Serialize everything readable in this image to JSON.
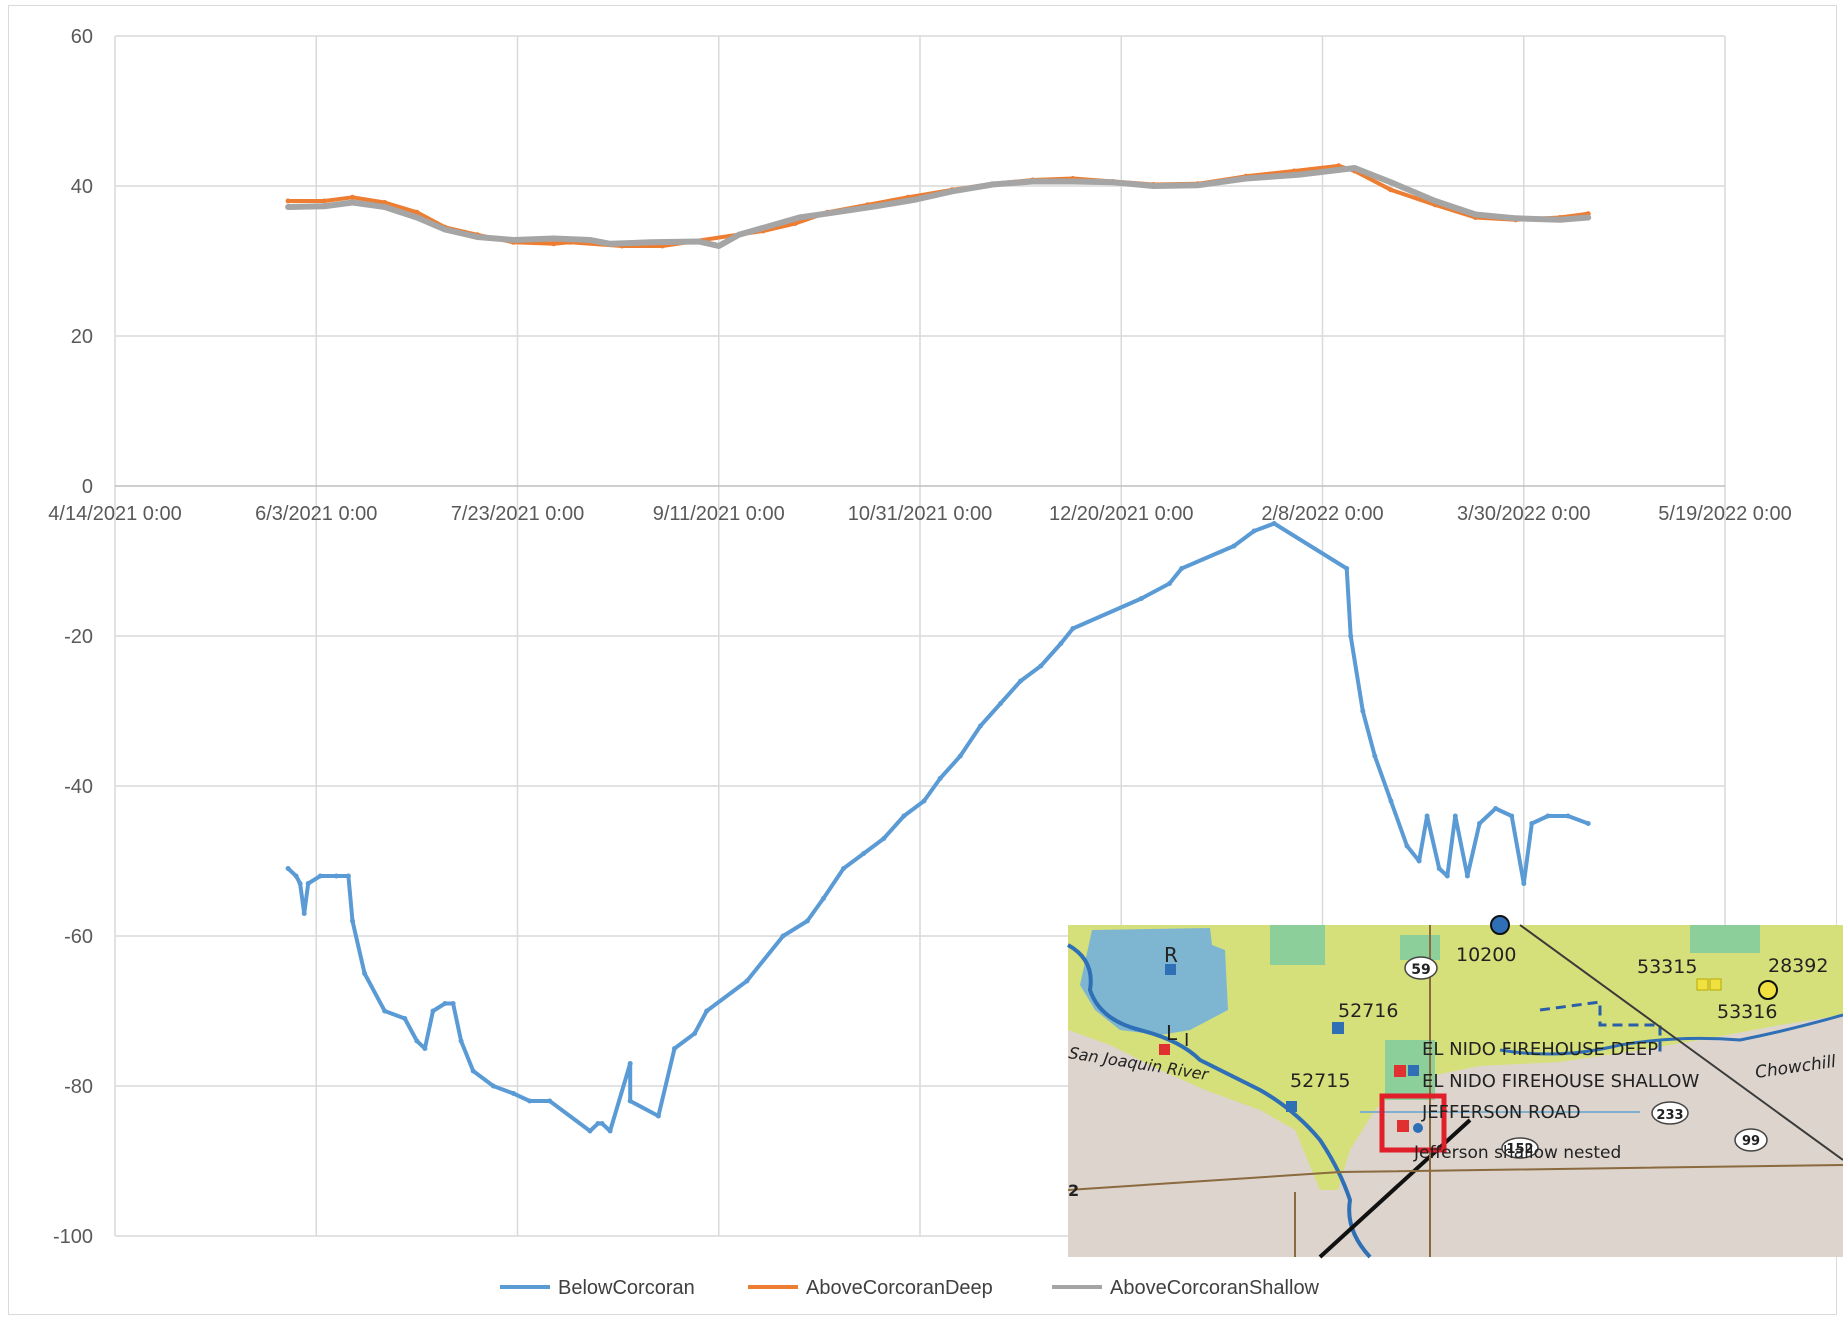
{
  "chart_data": {
    "type": "line",
    "title": "",
    "xlabel": "",
    "ylabel": "",
    "ylim": [
      -100,
      60
    ],
    "yticks": [
      60,
      40,
      20,
      0,
      -20,
      -40,
      -60,
      -80,
      -100
    ],
    "xlim": [
      "2021-04-14",
      "2022-05-19"
    ],
    "x_tick_labels": [
      "4/14/2021 0:00",
      "6/3/2021 0:00",
      "7/23/2021 0:00",
      "9/11/2021 0:00",
      "10/31/2021 0:00",
      "12/20/2021 0:00",
      "2/8/2022 0:00",
      "3/30/2022 0:00",
      "5/19/2022 0:00"
    ],
    "x_tick_dates": [
      "2021-04-14",
      "2021-06-03",
      "2021-07-23",
      "2021-09-11",
      "2021-10-31",
      "2021-12-20",
      "2022-02-08",
      "2022-03-30",
      "2022-05-19"
    ],
    "grid": true,
    "legend": "bottom",
    "series": [
      {
        "name": "BelowCorcoran",
        "color": "#5b9bd5",
        "points": [
          [
            "2021-05-27",
            -51
          ],
          [
            "2021-05-29",
            -52
          ],
          [
            "2021-05-30",
            -53
          ],
          [
            "2021-05-31",
            -57
          ],
          [
            "2021-06-01",
            -53
          ],
          [
            "2021-06-04",
            -52
          ],
          [
            "2021-06-08",
            -52
          ],
          [
            "2021-06-11",
            -52
          ],
          [
            "2021-06-12",
            -58
          ],
          [
            "2021-06-15",
            -65
          ],
          [
            "2021-06-20",
            -70
          ],
          [
            "2021-06-25",
            -71
          ],
          [
            "2021-06-28",
            -74
          ],
          [
            "2021-06-30",
            -75
          ],
          [
            "2021-07-02",
            -70
          ],
          [
            "2021-07-05",
            -69
          ],
          [
            "2021-07-07",
            -69
          ],
          [
            "2021-07-09",
            -74
          ],
          [
            "2021-07-12",
            -78
          ],
          [
            "2021-07-17",
            -80
          ],
          [
            "2021-07-22",
            -81
          ],
          [
            "2021-07-26",
            -82
          ],
          [
            "2021-07-31",
            -82
          ],
          [
            "2021-08-10",
            -86
          ],
          [
            "2021-08-12",
            -85
          ],
          [
            "2021-08-13",
            -85
          ],
          [
            "2021-08-15",
            -86
          ],
          [
            "2021-08-20",
            -77
          ],
          [
            "2021-08-20",
            -82
          ],
          [
            "2021-08-27",
            -84
          ],
          [
            "2021-08-31",
            -75
          ],
          [
            "2021-09-05",
            -73
          ],
          [
            "2021-09-08",
            -70
          ],
          [
            "2021-09-18",
            -66
          ],
          [
            "2021-09-27",
            -60
          ],
          [
            "2021-10-03",
            -58
          ],
          [
            "2021-10-07",
            -55
          ],
          [
            "2021-10-12",
            -51
          ],
          [
            "2021-10-17",
            -49
          ],
          [
            "2021-10-22",
            -47
          ],
          [
            "2021-10-27",
            -44
          ],
          [
            "2021-11-01",
            -42
          ],
          [
            "2021-11-05",
            -39
          ],
          [
            "2021-11-10",
            -36
          ],
          [
            "2021-11-15",
            -32
          ],
          [
            "2021-11-20",
            -29
          ],
          [
            "2021-11-25",
            -26
          ],
          [
            "2021-11-30",
            -24
          ],
          [
            "2021-12-05",
            -21
          ],
          [
            "2021-12-08",
            -19
          ],
          [
            "2021-12-25",
            -15
          ],
          [
            "2022-01-01",
            -13
          ],
          [
            "2022-01-04",
            -11
          ],
          [
            "2022-01-17",
            -8
          ],
          [
            "2022-01-22",
            -6
          ],
          [
            "2022-01-27",
            -5
          ],
          [
            "2022-02-14",
            -11
          ],
          [
            "2022-02-15",
            -20
          ],
          [
            "2022-02-18",
            -30
          ],
          [
            "2022-02-21",
            -36
          ],
          [
            "2022-02-25",
            -42
          ],
          [
            "2022-03-01",
            -48
          ],
          [
            "2022-03-04",
            -50
          ],
          [
            "2022-03-06",
            -44
          ],
          [
            "2022-03-09",
            -51
          ],
          [
            "2022-03-11",
            -52
          ],
          [
            "2022-03-13",
            -44
          ],
          [
            "2022-03-16",
            -52
          ],
          [
            "2022-03-19",
            -45
          ],
          [
            "2022-03-23",
            -43
          ],
          [
            "2022-03-27",
            -44
          ],
          [
            "2022-03-30",
            -53
          ],
          [
            "2022-04-01",
            -45
          ],
          [
            "2022-04-05",
            -44
          ],
          [
            "2022-04-10",
            -44
          ],
          [
            "2022-04-15",
            -45
          ]
        ]
      },
      {
        "name": "AboveCorcoranDeep",
        "color": "#ed7d31",
        "points": [
          [
            "2021-05-27",
            38
          ],
          [
            "2021-06-05",
            38
          ],
          [
            "2021-06-12",
            38.5
          ],
          [
            "2021-06-20",
            37.8
          ],
          [
            "2021-06-28",
            36.5
          ],
          [
            "2021-07-05",
            34.5
          ],
          [
            "2021-07-13",
            33.5
          ],
          [
            "2021-07-22",
            32.5
          ],
          [
            "2021-08-01",
            32.3
          ],
          [
            "2021-08-05",
            32.5
          ],
          [
            "2021-08-18",
            32
          ],
          [
            "2021-08-28",
            32
          ],
          [
            "2021-09-22",
            34
          ],
          [
            "2021-09-30",
            35
          ],
          [
            "2021-10-08",
            36.5
          ],
          [
            "2021-10-18",
            37.5
          ],
          [
            "2021-10-28",
            38.5
          ],
          [
            "2021-11-08",
            39.5
          ],
          [
            "2021-11-18",
            40.3
          ],
          [
            "2021-11-28",
            40.8
          ],
          [
            "2021-12-08",
            41
          ],
          [
            "2021-12-18",
            40.6
          ],
          [
            "2021-12-28",
            40.2
          ],
          [
            "2022-01-08",
            40.3
          ],
          [
            "2022-01-20",
            41.3
          ],
          [
            "2022-02-01",
            42
          ],
          [
            "2022-02-12",
            42.7
          ],
          [
            "2022-02-16",
            42
          ],
          [
            "2022-02-25",
            39.5
          ],
          [
            "2022-03-08",
            37.5
          ],
          [
            "2022-03-18",
            35.8
          ],
          [
            "2022-03-28",
            35.5
          ],
          [
            "2022-04-08",
            35.8
          ],
          [
            "2022-04-15",
            36.3
          ]
        ]
      },
      {
        "name": "AboveCorcoranShallow",
        "color": "#a5a5a5",
        "points": [
          [
            "2021-05-27",
            37.2
          ],
          [
            "2021-06-05",
            37.3
          ],
          [
            "2021-06-12",
            37.8
          ],
          [
            "2021-06-20",
            37.2
          ],
          [
            "2021-06-28",
            35.8
          ],
          [
            "2021-07-05",
            34.2
          ],
          [
            "2021-07-13",
            33.2
          ],
          [
            "2021-07-22",
            32.8
          ],
          [
            "2021-08-01",
            33
          ],
          [
            "2021-08-10",
            32.8
          ],
          [
            "2021-08-15",
            32.3
          ],
          [
            "2021-08-25",
            32.5
          ],
          [
            "2021-09-06",
            32.6
          ],
          [
            "2021-09-11",
            32
          ],
          [
            "2021-09-16",
            33.5
          ],
          [
            "2021-10-01",
            35.8
          ],
          [
            "2021-10-10",
            36.5
          ],
          [
            "2021-10-20",
            37.3
          ],
          [
            "2021-10-30",
            38.2
          ],
          [
            "2021-11-08",
            39.3
          ],
          [
            "2021-11-18",
            40.2
          ],
          [
            "2021-11-28",
            40.6
          ],
          [
            "2021-12-08",
            40.6
          ],
          [
            "2021-12-18",
            40.5
          ],
          [
            "2021-12-28",
            40
          ],
          [
            "2022-01-08",
            40.1
          ],
          [
            "2022-01-20",
            41
          ],
          [
            "2022-02-02",
            41.5
          ],
          [
            "2022-02-16",
            42.4
          ],
          [
            "2022-02-25",
            40.5
          ],
          [
            "2022-03-08",
            38
          ],
          [
            "2022-03-18",
            36.2
          ],
          [
            "2022-03-28",
            35.7
          ],
          [
            "2022-04-08",
            35.5
          ],
          [
            "2022-04-15",
            35.8
          ]
        ]
      }
    ]
  },
  "inset_map": {
    "labels": {
      "r": "R",
      "l": "L",
      "i": "I",
      "n10200": "10200",
      "n53315": "53315",
      "n28392": "28392",
      "n53316": "53316",
      "n52716": "52716",
      "n52715": "52715",
      "deep": "EL NIDO FIREHOUSE DEEP",
      "shallow": "EL NIDO FIREHOUSE SHALLOW",
      "jefferson": "JEFFERSON ROAD",
      "jeff_shallow": "Jefferson shallow nested",
      "river": "San Joaquin River",
      "chowchilla": "Chowchill",
      "hwy59": "59",
      "hwy233": "233",
      "hwy99": "99",
      "hwy152": "152",
      "route2": "2"
    }
  }
}
